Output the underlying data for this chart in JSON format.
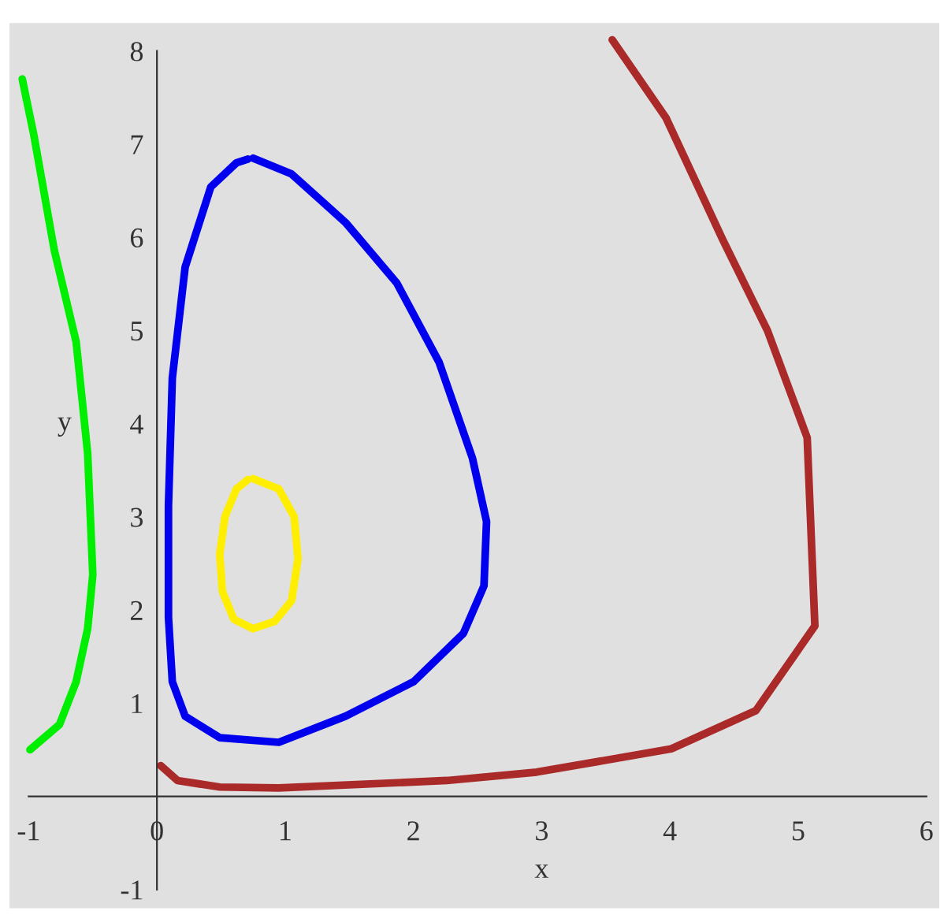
{
  "chart_data": {
    "type": "line",
    "xlabel": "x",
    "ylabel": "y",
    "xlim": [
      -1.15,
      6.1
    ],
    "ylim": [
      -1.2,
      8.3
    ],
    "xticks": [
      -1,
      0,
      1,
      2,
      3,
      4,
      5,
      6
    ],
    "yticks": [
      -1,
      1,
      2,
      3,
      4,
      5,
      6,
      7,
      8
    ],
    "grid": false,
    "legend": false,
    "marker": "none",
    "line_style": "solid",
    "series": [
      {
        "color": "#00ee00",
        "x": [
          -1.05,
          -0.96,
          -0.8,
          -0.63,
          -0.54,
          -0.5,
          -0.54,
          -0.63,
          -0.76,
          -0.99
        ],
        "values": [
          7.7,
          7.1,
          5.86,
          4.88,
          3.68,
          2.38,
          1.8,
          1.23,
          0.77,
          0.5
        ]
      },
      {
        "color": "#0000ee",
        "x": [
          0.75,
          1.05,
          1.47,
          1.87,
          2.2,
          2.46,
          2.57,
          2.55,
          2.39,
          2.0,
          1.47,
          0.95,
          0.49,
          0.22,
          0.12,
          0.09,
          0.09,
          0.12,
          0.22,
          0.42,
          0.62,
          0.71
        ],
        "values": [
          6.85,
          6.68,
          6.16,
          5.51,
          4.66,
          3.63,
          2.95,
          2.26,
          1.75,
          1.23,
          0.86,
          0.58,
          0.63,
          0.86,
          1.23,
          1.92,
          3.12,
          4.49,
          5.68,
          6.54,
          6.8,
          6.84
        ]
      },
      {
        "color": "#ffee00",
        "x": [
          0.75,
          0.95,
          1.07,
          1.1,
          1.05,
          0.92,
          0.75,
          0.6,
          0.51,
          0.49,
          0.53,
          0.62,
          0.71
        ],
        "values": [
          3.41,
          3.3,
          3.0,
          2.55,
          2.1,
          1.88,
          1.8,
          1.9,
          2.2,
          2.6,
          3.0,
          3.3,
          3.4
        ]
      },
      {
        "color": "#aa2a2a",
        "x": [
          0.03,
          0.16,
          0.49,
          0.95,
          2.26,
          2.96,
          4.01,
          4.67,
          5.13,
          5.07,
          4.76,
          4.41,
          3.97,
          3.55
        ],
        "values": [
          0.33,
          0.17,
          0.1,
          0.09,
          0.17,
          0.26,
          0.51,
          0.92,
          1.83,
          3.85,
          5.0,
          5.98,
          7.28,
          8.12
        ]
      }
    ]
  }
}
